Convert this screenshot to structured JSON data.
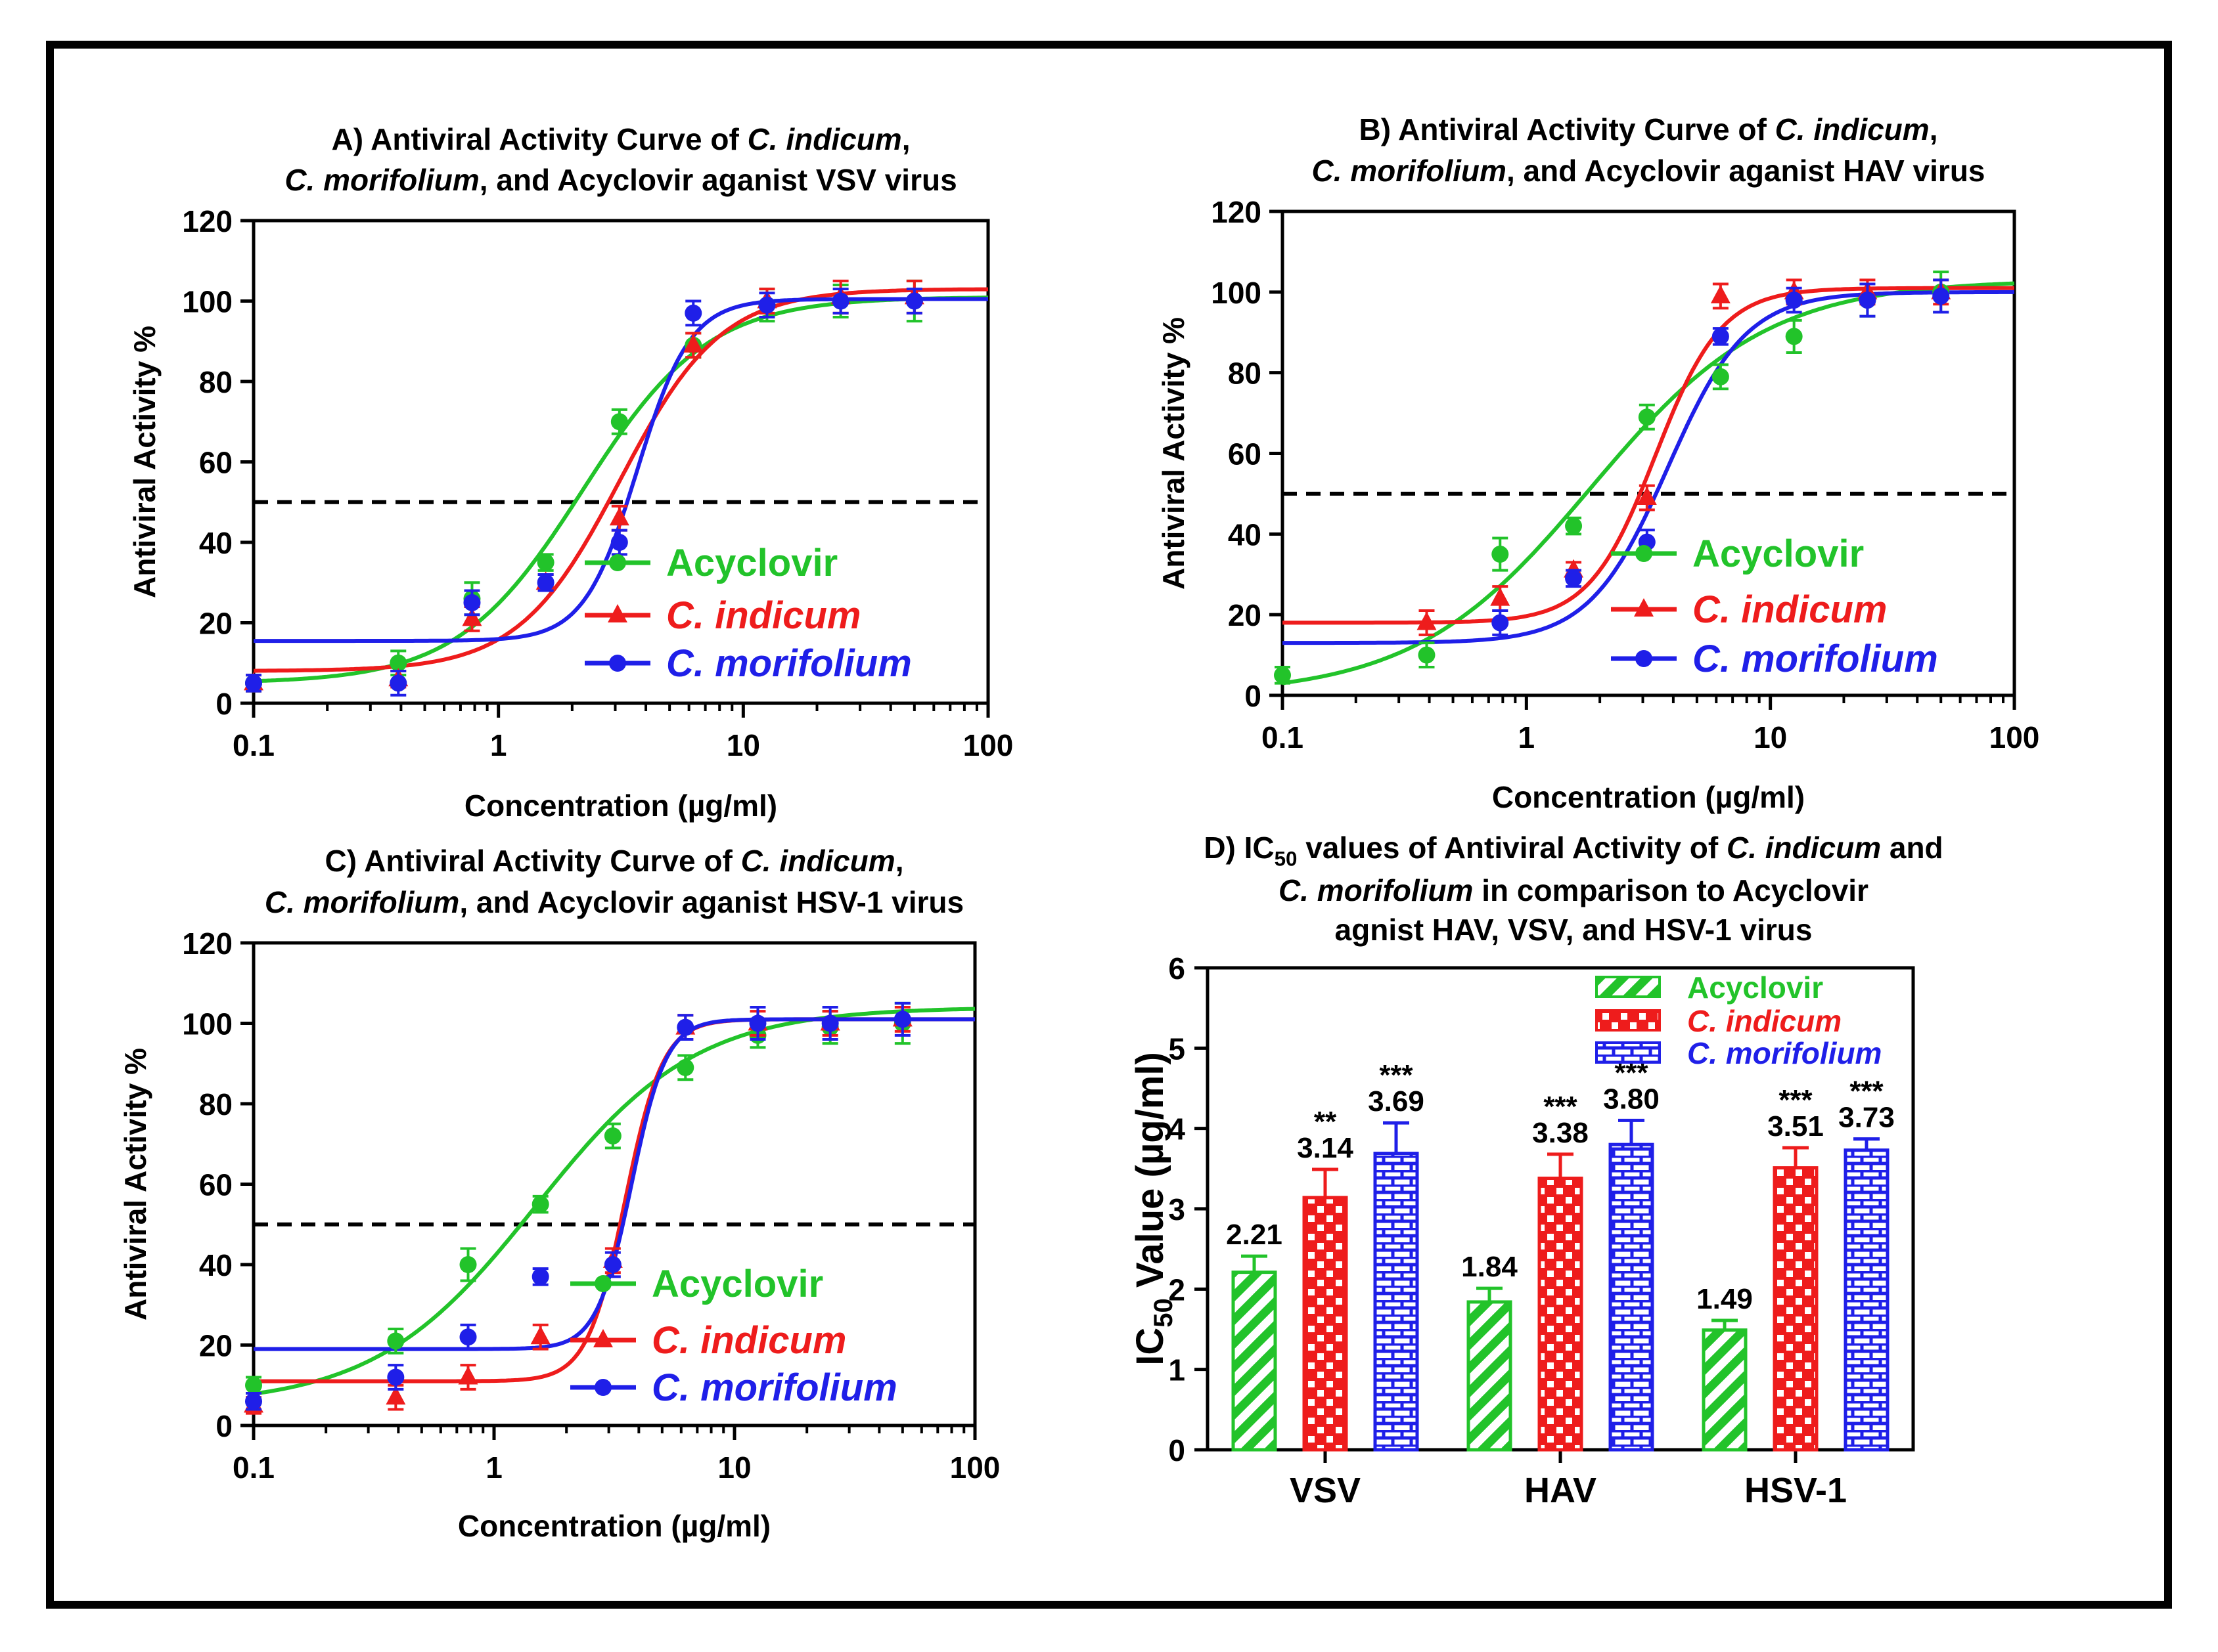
{
  "colors": {
    "acyclovir": "#22c32a",
    "indicum": "#ee1c1c",
    "morifolium": "#1f1fe8",
    "frame": "#000000",
    "axis": "#000000",
    "background": "#ffffff"
  },
  "chart_data": [
    {
      "id": "A",
      "type": "line",
      "title_parts": [
        [
          {
            "t": "A) Antiviral Activity Curve of ",
            "i": false
          },
          {
            "t": "C. indicum",
            "i": true
          },
          {
            "t": ",",
            "i": false
          }
        ],
        [
          {
            "t": "C. morifolium",
            "i": true
          },
          {
            "t": ", and Acyclovir aganist VSV virus",
            "i": false
          }
        ]
      ],
      "xlabel": "Concentration (µg/ml)",
      "ylabel": "Antiviral Activity %",
      "xscale": "log",
      "xlim": [
        0.1,
        100
      ],
      "ylim": [
        0,
        120
      ],
      "xticks": [
        0.1,
        1,
        10,
        100
      ],
      "xtick_labels": [
        "0.1",
        "1",
        "10",
        "100"
      ],
      "yticks": [
        0,
        20,
        40,
        60,
        80,
        100,
        120
      ],
      "threshold": 50,
      "legend": [
        "Acyclovir",
        "C. indicum",
        "C. morifolium"
      ],
      "series": [
        {
          "name": "Acyclovir",
          "key": "acyclovir",
          "marker": "circle",
          "fit": {
            "bottom": 5,
            "top": 101,
            "ec50": 2.21,
            "hill": 1.7
          },
          "points": [
            [
              0.1,
              5,
              2
            ],
            [
              0.39,
              10,
              3
            ],
            [
              0.78,
              26,
              4
            ],
            [
              1.56,
              35,
              2
            ],
            [
              3.12,
              70,
              3
            ],
            [
              6.25,
              89,
              3
            ],
            [
              12.5,
              99,
              4
            ],
            [
              25,
              100,
              4
            ],
            [
              50,
              100,
              5
            ]
          ]
        },
        {
          "name": "C. indicum",
          "key": "indicum",
          "marker": "triangle",
          "fit": {
            "bottom": 8,
            "top": 103,
            "ec50": 3.14,
            "hill": 2.1
          },
          "points": [
            [
              0.1,
              5,
              2
            ],
            [
              0.39,
              6,
              2
            ],
            [
              0.78,
              21,
              3
            ],
            [
              1.56,
              30,
              2
            ],
            [
              3.12,
              46,
              3
            ],
            [
              6.25,
              89,
              3
            ],
            [
              12.5,
              100,
              3
            ],
            [
              25,
              101,
              4
            ],
            [
              50,
              101,
              4
            ]
          ]
        },
        {
          "name": "C. morifolium",
          "key": "morifolium",
          "marker": "circle",
          "fit": {
            "bottom": 15.5,
            "top": 100.5,
            "ec50": 3.69,
            "hill": 4.0
          },
          "points": [
            [
              0.1,
              5,
              2
            ],
            [
              0.39,
              5,
              3
            ],
            [
              0.78,
              25,
              3
            ],
            [
              1.56,
              30,
              2
            ],
            [
              3.12,
              40,
              3
            ],
            [
              6.25,
              97,
              3
            ],
            [
              12.5,
              99,
              3
            ],
            [
              25,
              100,
              3
            ],
            [
              50,
              100,
              3
            ]
          ]
        }
      ]
    },
    {
      "id": "B",
      "type": "line",
      "title_parts": [
        [
          {
            "t": "B) Antiviral Activity Curve of ",
            "i": false
          },
          {
            "t": "C. indicum",
            "i": true
          },
          {
            "t": ",",
            "i": false
          }
        ],
        [
          {
            "t": "C. morifolium",
            "i": true
          },
          {
            "t": ", and Acyclovir aganist HAV virus",
            "i": false
          }
        ]
      ],
      "xlabel": "Concentration (µg/ml)",
      "ylabel": "Antiviral Activity %",
      "xscale": "log",
      "xlim": [
        0.1,
        100
      ],
      "ylim": [
        0,
        120
      ],
      "xticks": [
        0.1,
        1,
        10,
        100
      ],
      "xtick_labels": [
        "0.1",
        "1",
        "10",
        "100"
      ],
      "yticks": [
        0,
        20,
        40,
        60,
        80,
        100,
        120
      ],
      "threshold": 50,
      "legend": [
        "Acyclovir",
        "C. indicum",
        "C. morifolium"
      ],
      "series": [
        {
          "name": "Acyclovir",
          "key": "acyclovir",
          "marker": "circle",
          "fit": {
            "bottom": 0,
            "top": 103,
            "ec50": 1.84,
            "hill": 1.2
          },
          "points": [
            [
              0.1,
              5,
              2
            ],
            [
              0.39,
              10,
              3
            ],
            [
              0.78,
              35,
              4
            ],
            [
              1.56,
              42,
              2
            ],
            [
              3.12,
              69,
              3
            ],
            [
              6.25,
              79,
              3
            ],
            [
              12.5,
              89,
              4
            ],
            [
              25,
              98,
              4
            ],
            [
              50,
              100,
              5
            ]
          ]
        },
        {
          "name": "C. indicum",
          "key": "indicum",
          "marker": "triangle",
          "fit": {
            "bottom": 18,
            "top": 101,
            "ec50": 3.38,
            "hill": 3.2
          },
          "points": [
            [
              0.39,
              18,
              3
            ],
            [
              0.78,
              24,
              3
            ],
            [
              1.56,
              31,
              2
            ],
            [
              3.12,
              49,
              3
            ],
            [
              6.25,
              99,
              3
            ],
            [
              12.5,
              100,
              3
            ],
            [
              25,
              100,
              3
            ],
            [
              50,
              100,
              3
            ]
          ]
        },
        {
          "name": "C. morifolium",
          "key": "morifolium",
          "marker": "circle",
          "fit": {
            "bottom": 13,
            "top": 100,
            "ec50": 3.8,
            "hill": 2.7
          },
          "points": [
            [
              0.78,
              18,
              3
            ],
            [
              1.56,
              29,
              2
            ],
            [
              3.12,
              38,
              3
            ],
            [
              6.25,
              89,
              2
            ],
            [
              12.5,
              98,
              3
            ],
            [
              25,
              98,
              4
            ],
            [
              50,
              99,
              4
            ]
          ]
        }
      ]
    },
    {
      "id": "C",
      "type": "line",
      "title_parts": [
        [
          {
            "t": "C) Antiviral Activity Curve of ",
            "i": false
          },
          {
            "t": "C. indicum",
            "i": true
          },
          {
            "t": ",",
            "i": false
          }
        ],
        [
          {
            "t": "C. morifolium",
            "i": true
          },
          {
            "t": ", and Acyclovir aganist HSV-1 virus",
            "i": false
          }
        ]
      ],
      "xlabel": "Concentration (µg/ml)",
      "ylabel": "Antiviral Activity %",
      "xscale": "log",
      "xlim": [
        0.1,
        100
      ],
      "ylim": [
        0,
        120
      ],
      "xticks": [
        0.1,
        1,
        10,
        100
      ],
      "xtick_labels": [
        "0.1",
        "1",
        "10",
        "100"
      ],
      "yticks": [
        0,
        20,
        40,
        60,
        80,
        100,
        120
      ],
      "threshold": 50,
      "legend": [
        "Acyclovir",
        "C. indicum",
        "C. morifolium"
      ],
      "series": [
        {
          "name": "Acyclovir",
          "key": "acyclovir",
          "marker": "circle",
          "fit": {
            "bottom": 5,
            "top": 104,
            "ec50": 1.49,
            "hill": 1.3
          },
          "points": [
            [
              0.1,
              10,
              2
            ],
            [
              0.39,
              21,
              3
            ],
            [
              0.78,
              40,
              4
            ],
            [
              1.56,
              55,
              2
            ],
            [
              3.12,
              72,
              3
            ],
            [
              6.25,
              89,
              3
            ],
            [
              12.5,
              97,
              3
            ],
            [
              25,
              99,
              4
            ],
            [
              50,
              100,
              5
            ]
          ]
        },
        {
          "name": "C. indicum",
          "key": "indicum",
          "marker": "triangle",
          "fit": {
            "bottom": 11,
            "top": 101,
            "ec50": 3.51,
            "hill": 5.5
          },
          "points": [
            [
              0.1,
              5,
              2
            ],
            [
              0.39,
              7,
              3
            ],
            [
              0.78,
              12,
              3
            ],
            [
              1.56,
              22,
              3
            ],
            [
              3.12,
              41,
              3
            ],
            [
              6.25,
              99,
              3
            ],
            [
              12.5,
              100,
              3
            ],
            [
              25,
              100,
              3
            ],
            [
              50,
              101,
              3
            ]
          ]
        },
        {
          "name": "C. morifolium",
          "key": "morifolium",
          "marker": "circle",
          "fit": {
            "bottom": 19,
            "top": 101,
            "ec50": 3.73,
            "hill": 6.0
          },
          "points": [
            [
              0.1,
              6,
              2
            ],
            [
              0.39,
              12,
              3
            ],
            [
              0.78,
              22,
              3
            ],
            [
              1.56,
              37,
              2
            ],
            [
              3.12,
              40,
              3
            ],
            [
              6.25,
              99,
              3
            ],
            [
              12.5,
              100,
              4
            ],
            [
              25,
              100,
              4
            ],
            [
              50,
              101,
              4
            ]
          ]
        }
      ]
    },
    {
      "id": "D",
      "type": "bar",
      "title_parts": [
        [
          {
            "t": "D) IC",
            "i": false
          },
          {
            "t": "50",
            "i": false,
            "sub": true
          },
          {
            "t": " values of Antiviral Activity of ",
            "i": false
          },
          {
            "t": "C. indicum",
            "i": true
          },
          {
            "t": " and",
            "i": false
          }
        ],
        [
          {
            "t": "C. morifolium",
            "i": true
          },
          {
            "t": " in comparison to Acyclovir",
            "i": false
          }
        ],
        [
          {
            "t": "agnist HAV, VSV, and HSV-1 virus",
            "i": false
          }
        ]
      ],
      "ylabel_main": "IC",
      "ylabel_sub": "50",
      "ylabel_tail": " Value (µg/ml)",
      "ylim": [
        0,
        6
      ],
      "yticks": [
        0,
        1,
        2,
        3,
        4,
        5,
        6
      ],
      "categories": [
        "VSV",
        "HAV",
        "HSV-1"
      ],
      "legend": [
        "Acyclovir",
        "C. indicum",
        "C. morifolium"
      ],
      "series": [
        {
          "name": "Acyclovir",
          "key": "acyclovir",
          "pattern": "diagonal",
          "values": [
            2.21,
            1.84,
            1.49
          ],
          "errors": [
            0.2,
            0.17,
            0.12
          ],
          "labels": [
            "2.21",
            "1.84",
            "1.49"
          ],
          "sig": [
            "",
            "",
            ""
          ]
        },
        {
          "name": "C. indicum",
          "key": "indicum",
          "pattern": "checker",
          "values": [
            3.14,
            3.38,
            3.51
          ],
          "errors": [
            0.35,
            0.3,
            0.25
          ],
          "labels": [
            "3.14",
            "3.38",
            "3.51"
          ],
          "sig": [
            "**",
            "***",
            "***"
          ]
        },
        {
          "name": "C. morifolium",
          "key": "morifolium",
          "pattern": "brick",
          "values": [
            3.69,
            3.8,
            3.73
          ],
          "errors": [
            0.38,
            0.3,
            0.14
          ],
          "labels": [
            "3.69",
            "3.80",
            "3.73"
          ],
          "sig": [
            "***",
            "***",
            "***"
          ]
        }
      ]
    }
  ]
}
